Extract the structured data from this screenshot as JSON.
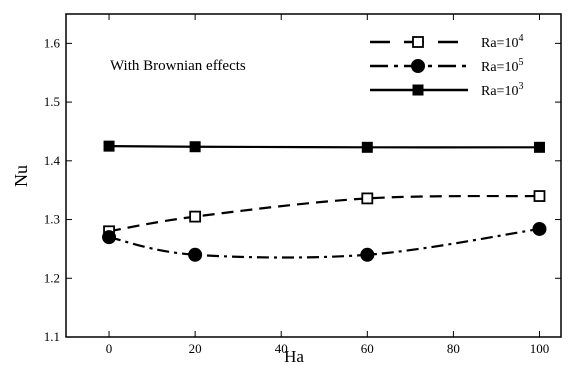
{
  "chart_data": {
    "type": "line",
    "title": "",
    "xlabel": "Ha",
    "ylabel": "Nu",
    "xlim": [
      -10,
      105
    ],
    "ylim": [
      1.1,
      1.65
    ],
    "xticks": [
      0,
      20,
      40,
      60,
      80,
      100
    ],
    "yticks": [
      1.1,
      1.2,
      1.3,
      1.4,
      1.5,
      1.6
    ],
    "xtick_labels": [
      "0",
      "20",
      "40",
      "60",
      "80",
      "100"
    ],
    "ytick_labels": [
      "1.1",
      "1.2",
      "1.3",
      "1.4",
      "1.5",
      "1.6"
    ],
    "annotation": "With Brownian effects",
    "grid": false,
    "legend_position": "top-right",
    "series": [
      {
        "key": "ra1e4",
        "legend_base": "Ra=10",
        "legend_exp": "4",
        "x": [
          0,
          20,
          60,
          100
        ],
        "y": [
          1.28,
          1.305,
          1.336,
          1.34
        ],
        "line_style": "dashed",
        "marker": "open-square",
        "color": "#000000"
      },
      {
        "key": "ra1e5",
        "legend_base": "Ra=10",
        "legend_exp": "5",
        "x": [
          0,
          20,
          60,
          100
        ],
        "y": [
          1.27,
          1.24,
          1.24,
          1.284
        ],
        "line_style": "dash-dot",
        "marker": "filled-circle",
        "color": "#000000"
      },
      {
        "key": "ra1e3",
        "legend_base": "Ra=10",
        "legend_exp": "3",
        "x": [
          0,
          20,
          60,
          100
        ],
        "y": [
          1.425,
          1.424,
          1.423,
          1.423
        ],
        "line_style": "solid",
        "marker": "filled-square",
        "color": "#000000"
      }
    ]
  }
}
